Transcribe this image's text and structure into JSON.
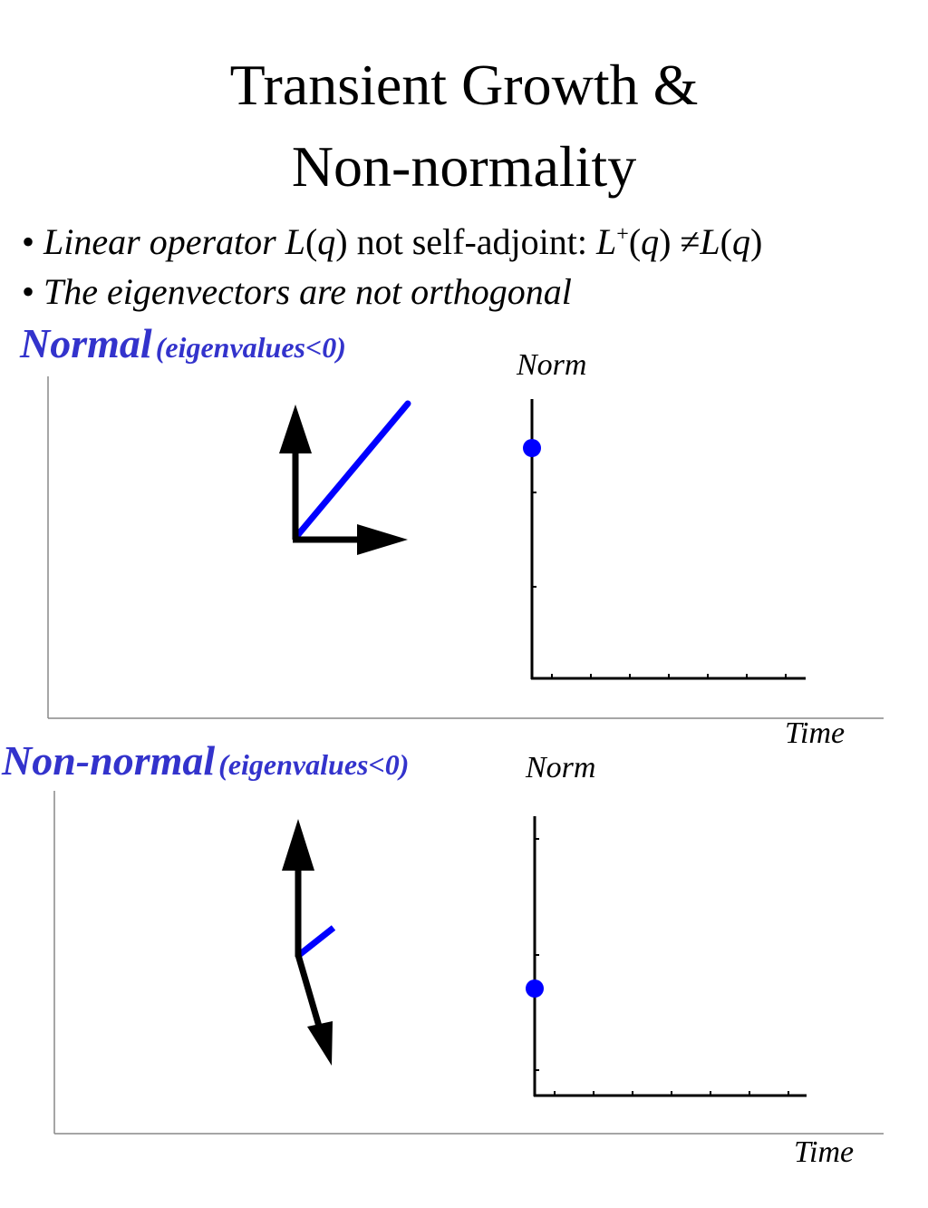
{
  "title": {
    "line1": "Transient Growth &",
    "line2": "Non-normality"
  },
  "bullets": [
    {
      "marker": "•",
      "lead_italic": "Linear operator ",
      "L1": "L",
      "q1": "q",
      "middle": " not self-adjoint: ",
      "L2": "L",
      "sup": "+",
      "q2": "q",
      "neq": " ≠",
      "L3": "L",
      "q3": "q"
    },
    {
      "marker": "•",
      "text": "The eigenvectors are not orthogonal"
    }
  ],
  "sections": [
    {
      "heading": "Normal",
      "sub": "(eigenvalues<0)",
      "ylabel": "Norm",
      "xlabel": "Time"
    },
    {
      "heading": "Non-normal",
      "sub": "(eigenvalues<0)",
      "ylabel": "Norm",
      "xlabel": "Time"
    }
  ],
  "colors": {
    "accent": "#3333cc",
    "vector_blue": "#0000ff",
    "ink": "#000000"
  }
}
